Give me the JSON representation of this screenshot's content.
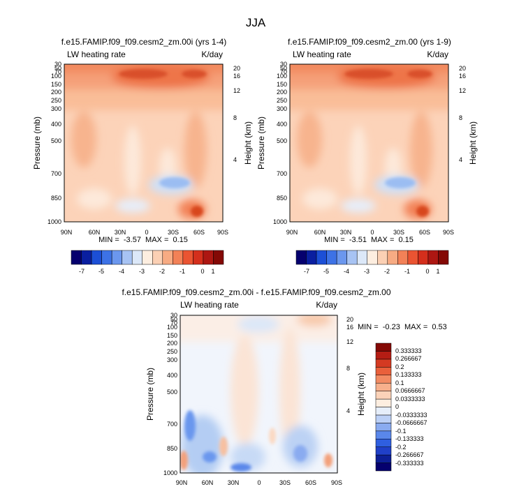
{
  "figure": {
    "title": "JJA"
  },
  "colors": {
    "cb1": [
      "#05006e",
      "#0a1fa0",
      "#1c4fd6",
      "#3d72e6",
      "#6b97ee",
      "#a7c3f3",
      "#dce8f8",
      "#fdeee0",
      "#fbd0b4",
      "#f7ab83",
      "#f28157",
      "#ea5432",
      "#d42f1c",
      "#ad1712",
      "#840905"
    ],
    "cb2": [
      "#05006e",
      "#0d1f96",
      "#2040c8",
      "#2f5fe0",
      "#5a87ea",
      "#8aabf0",
      "#bcd0f6",
      "#e6eefa",
      "#fdeee0",
      "#fbd2b8",
      "#f7b08c",
      "#f28b63",
      "#e9603b",
      "#d43a22",
      "#b51d14",
      "#840905"
    ]
  },
  "chart_data": [
    {
      "type": "heatmap",
      "title": "f.e15.FAMIP.f09_f09.cesm2_zm.00i (yrs 1-4)",
      "left_label": "LW heating rate",
      "right_label": "K/day",
      "xlabel": "",
      "ylabel": "Pressure (mb)",
      "ylabel_right": "Height (km)",
      "x_ticks": [
        "90N",
        "60N",
        "30N",
        "0",
        "30S",
        "60S",
        "90S"
      ],
      "y_ticks": [
        "30",
        "50",
        "70",
        "100",
        "150",
        "200",
        "250",
        "300",
        "400",
        "500",
        "700",
        "850",
        "1000"
      ],
      "height_ticks": [
        "20",
        "16",
        "12",
        "8",
        "4"
      ],
      "stats": "MIN =  -3.57  MAX =  0.15",
      "colorbar_labels": [
        "-7",
        "-5",
        "-4",
        "-3",
        "-2",
        "-1",
        "0",
        "1"
      ]
    },
    {
      "type": "heatmap",
      "title": "f.e15.FAMIP.f09_f09.cesm2_zm.00 (yrs 1-9)",
      "left_label": "LW heating rate",
      "right_label": "K/day",
      "xlabel": "",
      "ylabel": "Pressure (mb)",
      "ylabel_right": "Height (km)",
      "x_ticks": [
        "90N",
        "60N",
        "30N",
        "0",
        "30S",
        "60S",
        "90S"
      ],
      "y_ticks": [
        "30",
        "50",
        "70",
        "100",
        "150",
        "200",
        "250",
        "300",
        "400",
        "500",
        "700",
        "850",
        "1000"
      ],
      "height_ticks": [
        "20",
        "16",
        "12",
        "8",
        "4"
      ],
      "stats": "MIN =  -3.51  MAX =  0.15",
      "colorbar_labels": [
        "-7",
        "-5",
        "-4",
        "-3",
        "-2",
        "-1",
        "0",
        "1"
      ]
    },
    {
      "type": "heatmap",
      "title": "f.e15.FAMIP.f09_f09.cesm2_zm.00i - f.e15.FAMIP.f09_f09.cesm2_zm.00",
      "left_label": "LW heating rate",
      "right_label": "K/day",
      "xlabel": "",
      "ylabel": "Pressure (mb)",
      "ylabel_right": "Height (km)",
      "x_ticks": [
        "90N",
        "60N",
        "30N",
        "0",
        "30S",
        "60S",
        "90S"
      ],
      "y_ticks": [
        "30",
        "50",
        "70",
        "100",
        "150",
        "200",
        "250",
        "300",
        "400",
        "500",
        "700",
        "850",
        "1000"
      ],
      "height_ticks": [
        "20",
        "16",
        "12",
        "8",
        "4"
      ],
      "stats": "MIN =  -0.23  MAX =  0.53",
      "colorbar_labels": [
        "0.333333",
        "0.266667",
        "0.2",
        "0.133333",
        "0.1",
        "0.0666667",
        "0.0333333",
        "0",
        "-0.0333333",
        "-0.0666667",
        "-0.1",
        "-0.133333",
        "-0.2",
        "-0.266667",
        "-0.333333"
      ]
    }
  ]
}
